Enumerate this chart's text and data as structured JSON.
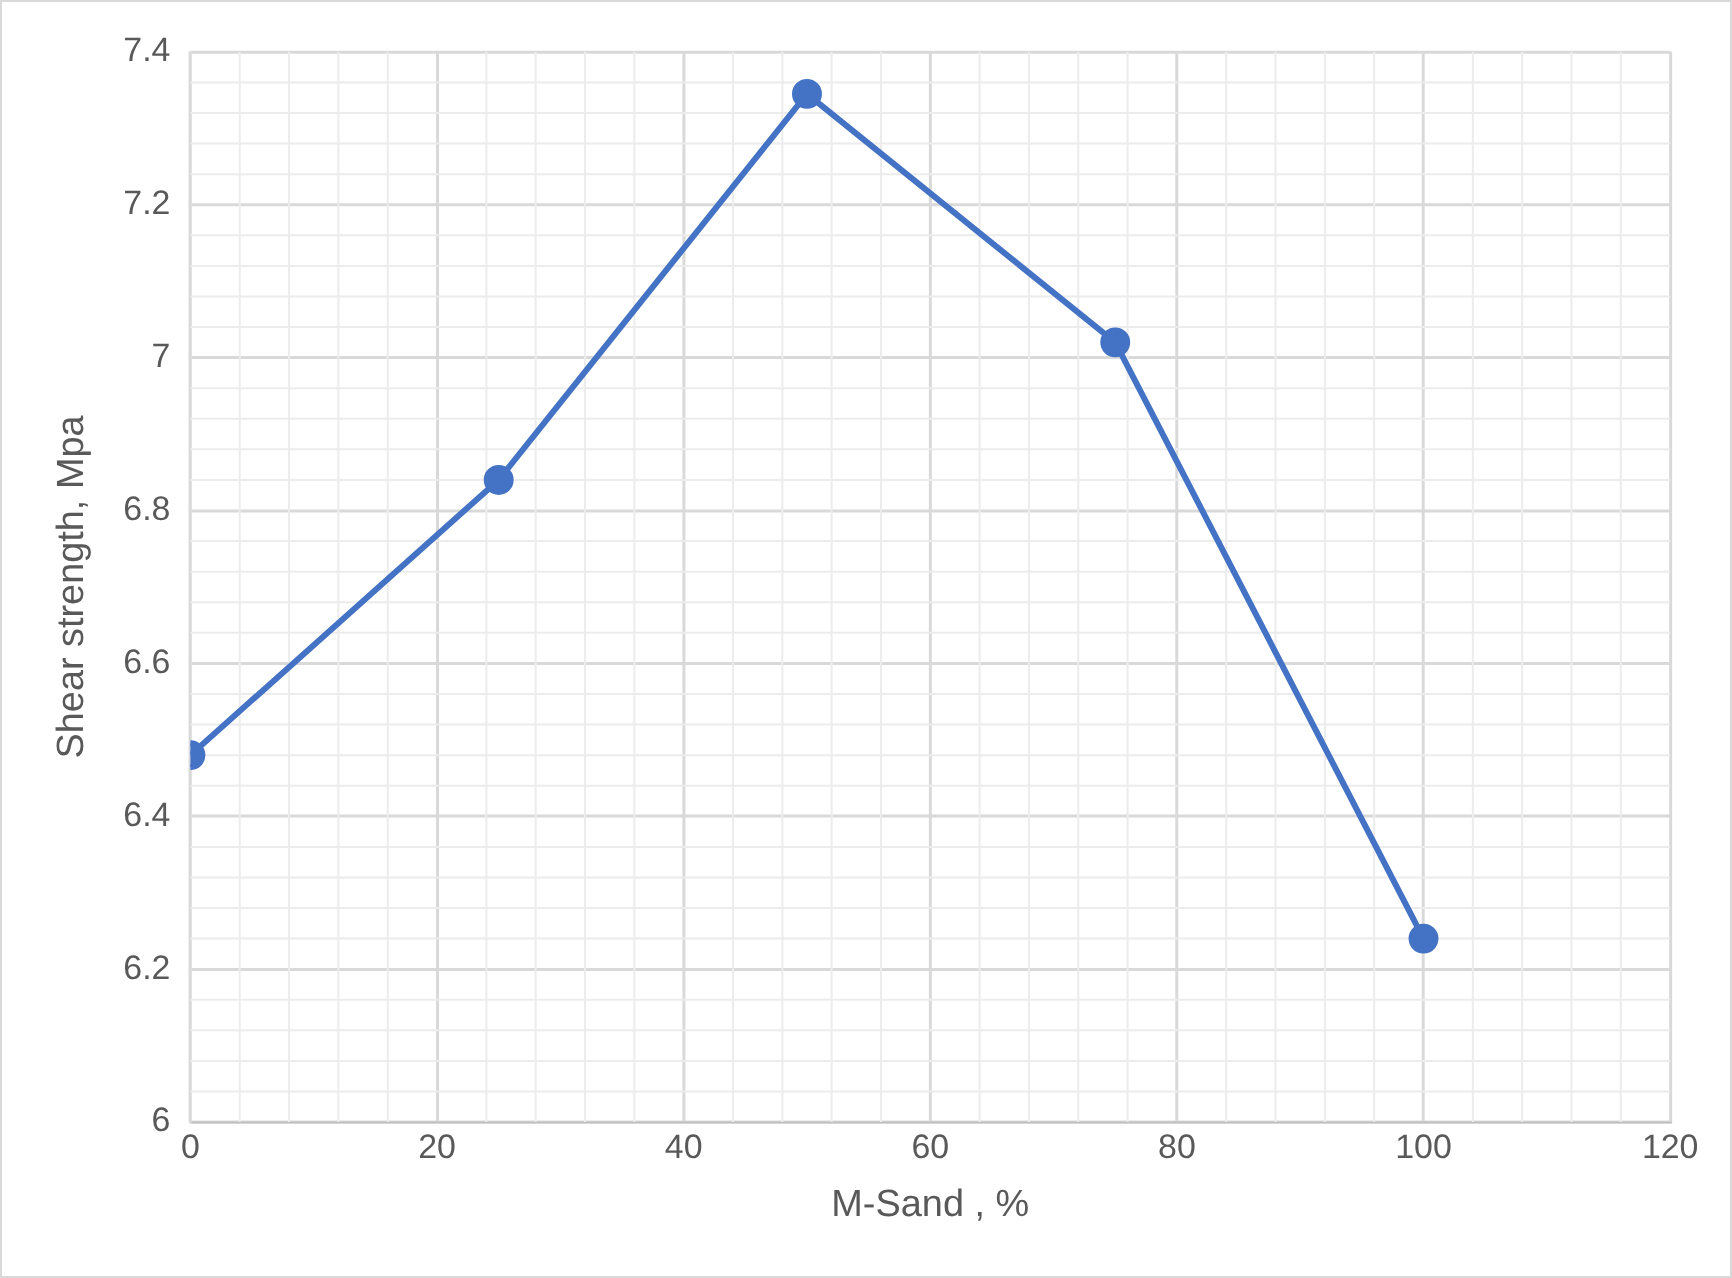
{
  "chart_data": {
    "type": "line",
    "xlabel": "M-Sand , %",
    "ylabel": "Shear strength, Mpa",
    "x": [
      0,
      25,
      50,
      75,
      100
    ],
    "series": [
      {
        "color": "#4472c4",
        "values": [
          6.48,
          6.84,
          7.345,
          7.02,
          6.24
        ]
      }
    ],
    "xlim": [
      0,
      120
    ],
    "xticks": [
      0,
      20,
      40,
      60,
      80,
      100,
      120
    ],
    "ylim": [
      6,
      7.4
    ],
    "yticks": [
      6,
      {
        "value": 6.2,
        "label": "6.2"
      },
      {
        "value": 6.4,
        "label": "6.4"
      },
      {
        "value": 6.6,
        "label": "6.6"
      },
      {
        "value": 6.8,
        "label": "6.8"
      },
      7,
      {
        "value": 7.2,
        "label": "7.2"
      },
      {
        "value": 7.4,
        "label": "7.4"
      }
    ],
    "grid": true,
    "marker": "circle",
    "line_style": "solid",
    "legend": false
  }
}
